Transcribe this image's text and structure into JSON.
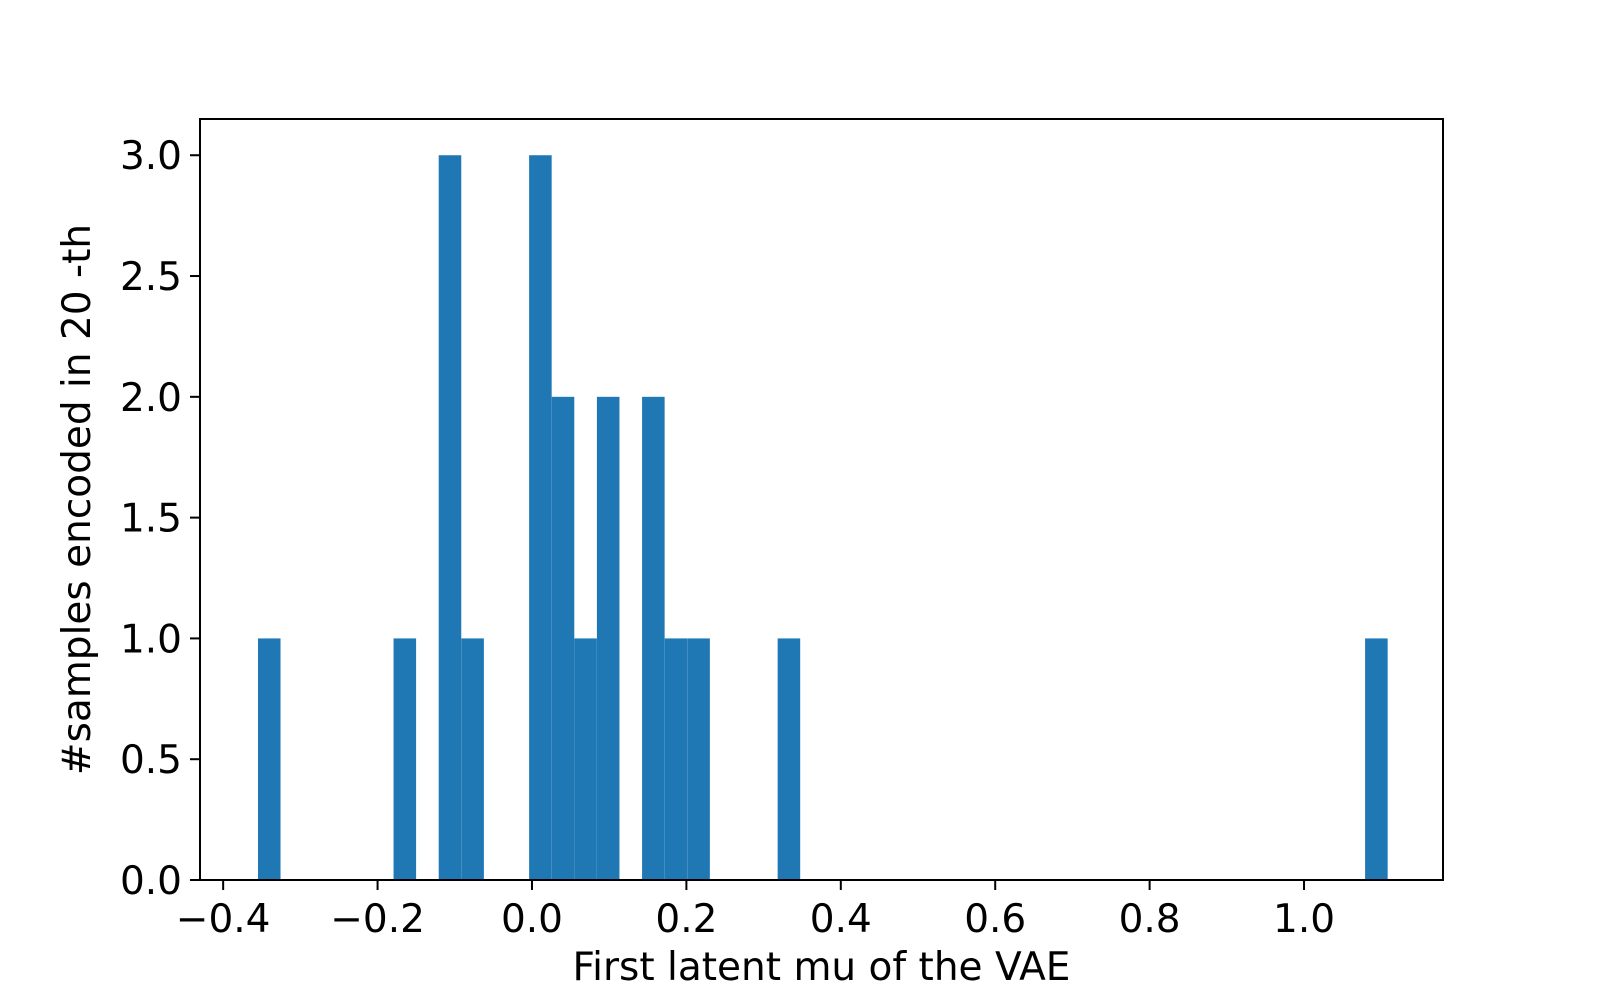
{
  "chart_data": {
    "type": "bar",
    "subtype": "histogram",
    "title": "",
    "xlabel": "First latent mu of the VAE",
    "ylabel": "#samples encoded in 20 -th",
    "xlim": [
      -0.43,
      1.18
    ],
    "ylim": [
      0.0,
      3.15
    ],
    "xticks": [
      -0.4,
      -0.2,
      0.0,
      0.2,
      0.4,
      0.6,
      0.8,
      1.0
    ],
    "xtick_labels": [
      "−0.4",
      "−0.2",
      "0.0",
      "0.2",
      "0.4",
      "0.6",
      "0.8",
      "1.0"
    ],
    "yticks": [
      0.0,
      0.5,
      1.0,
      1.5,
      2.0,
      2.5,
      3.0
    ],
    "ytick_labels": [
      "0.0",
      "0.5",
      "1.0",
      "1.5",
      "2.0",
      "2.5",
      "3.0"
    ],
    "bin_width": 0.0292,
    "bars": [
      {
        "x_start": -0.3549,
        "count": 1
      },
      {
        "x_start": -0.1793,
        "count": 1
      },
      {
        "x_start": -0.1208,
        "count": 3
      },
      {
        "x_start": -0.0915,
        "count": 1
      },
      {
        "x_start": -0.0037,
        "count": 3
      },
      {
        "x_start": 0.0256,
        "count": 2
      },
      {
        "x_start": 0.0548,
        "count": 1
      },
      {
        "x_start": 0.0841,
        "count": 2
      },
      {
        "x_start": 0.1426,
        "count": 2
      },
      {
        "x_start": 0.1719,
        "count": 1
      },
      {
        "x_start": 0.2012,
        "count": 1
      },
      {
        "x_start": 0.3182,
        "count": 1
      },
      {
        "x_start": 1.0791,
        "count": 1
      }
    ],
    "bar_color": "#1f77b4",
    "grid": false,
    "legend": "none"
  }
}
